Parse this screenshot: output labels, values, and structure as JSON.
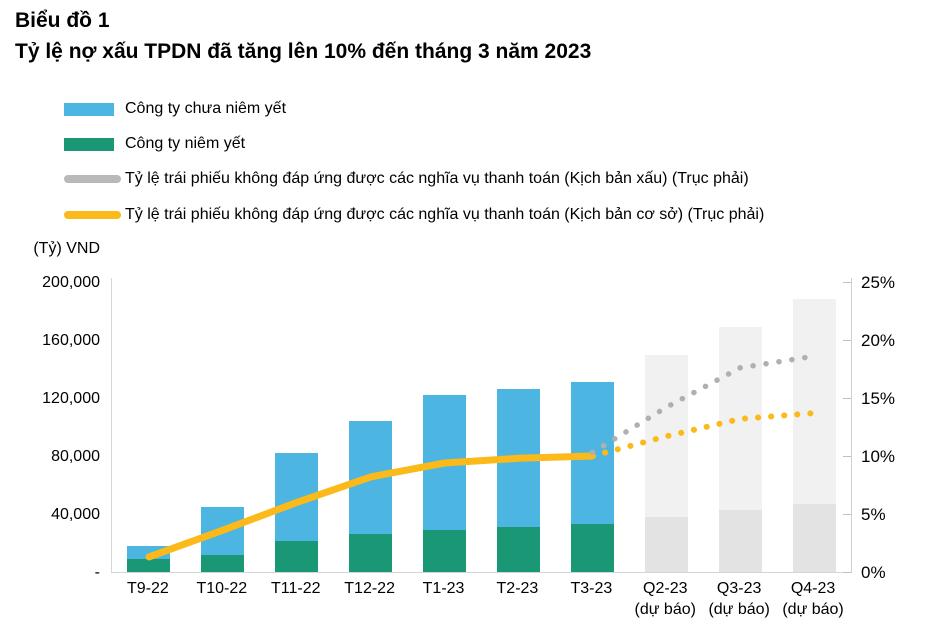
{
  "title": {
    "line1": "Biểu đồ 1",
    "line2": "Tỷ lệ nợ xấu TPDN đã tăng lên 10% đến tháng 3 năm 2023"
  },
  "legend": {
    "items": [
      {
        "label": "Công ty chưa niêm yết",
        "marker": "bar",
        "color": "#4DB5E2"
      },
      {
        "label": "Công ty niêm yết",
        "marker": "bar",
        "color": "#1A9875"
      },
      {
        "label": "Tỷ lệ trái phiếu không đáp ứng được các nghĩa vụ thanh toán (Kịch bản xấu) (Trục phải)",
        "marker": "line",
        "color": "#B9B9B9"
      },
      {
        "label": "Tỷ lệ trái phiếu không đáp ứng được các nghĩa vụ thanh toán (Kịch bản cơ sở) (Trục phải)",
        "marker": "line",
        "color": "#FBBA1A"
      }
    ]
  },
  "chart_data": {
    "type": "combo: stacked-bar + line (dual axis)",
    "categories": [
      "T9-22",
      "T10-22",
      "T11-22",
      "T12-22",
      "T1-23",
      "T2-23",
      "T3-23",
      "Q2-23",
      "Q3-23",
      "Q4-23"
    ],
    "category_sublabels": [
      "",
      "",
      "",
      "",
      "",
      "",
      "",
      "(dự báo)",
      "(dự báo)",
      "(dự báo)"
    ],
    "left_axis": {
      "unit": "(Tỷ) VND",
      "tick_labels_bottom_to_top": [
        "-",
        "40,000",
        "80,000",
        "120,000",
        "160,000",
        "200,000"
      ],
      "tick_values": [
        0,
        40000,
        80000,
        120000,
        160000,
        200000
      ],
      "max": 200000
    },
    "right_axis": {
      "tick_labels_bottom_to_top": [
        "0%",
        "5%",
        "10%",
        "15%",
        "20%",
        "25%"
      ],
      "tick_values": [
        0,
        5,
        10,
        15,
        20,
        25
      ],
      "max": 25
    },
    "bar_series": [
      {
        "name": "Công ty niêm yết",
        "color": "#1A9875",
        "values": [
          9000,
          12000,
          21500,
          26000,
          29000,
          31000,
          33000,
          null,
          null,
          null
        ]
      },
      {
        "name": "Công ty chưa niêm yết",
        "color": "#4DB5E2",
        "values": [
          9000,
          33000,
          60500,
          78000,
          93000,
          95000,
          98000,
          null,
          null,
          null
        ]
      },
      {
        "name": "Dự báo - phần dưới",
        "color": "#E3E3E3",
        "values": [
          null,
          null,
          null,
          null,
          null,
          null,
          null,
          38000,
          43000,
          47000
        ]
      },
      {
        "name": "Dự báo - phần trên",
        "color": "#F1F1F1",
        "values": [
          null,
          null,
          null,
          null,
          null,
          null,
          null,
          112000,
          126000,
          141000
        ]
      }
    ],
    "bar_totals": [
      18000,
      45000,
      82000,
      104000,
      122000,
      126000,
      131000,
      150000,
      169000,
      188000
    ],
    "line_series": [
      {
        "name": "Tỷ lệ trái phiếu không đáp ứng được các nghĩa vụ thanh toán (Kịch bản cơ sở) (Trục phải)",
        "color": "#FBBA1A",
        "style": "solid",
        "width": 7,
        "x_index": [
          0,
          1,
          2,
          3,
          4,
          5,
          6
        ],
        "values_pct": [
          1.3,
          3.6,
          6.0,
          8.2,
          9.4,
          9.8,
          10.0
        ]
      },
      {
        "name": "Kịch bản cơ sở - dự báo (nét chấm)",
        "color": "#FBBA1A",
        "style": "dotted",
        "width": 6,
        "x_index": [
          6,
          7,
          8,
          9
        ],
        "values_pct": [
          10.0,
          11.7,
          13.2,
          13.7
        ]
      },
      {
        "name": "Tỷ lệ trái phiếu không đáp ứng được các nghĩa vụ thanh toán (Kịch bản xấu) (Trục phải) - dự báo (nét chấm)",
        "color": "#B0B0B0",
        "style": "dotted",
        "width": 5.5,
        "x_index": [
          6,
          7,
          8,
          9
        ],
        "values_pct": [
          10.3,
          14.2,
          17.6,
          18.6
        ]
      }
    ],
    "legend_position": "top-left",
    "grid": false
  }
}
